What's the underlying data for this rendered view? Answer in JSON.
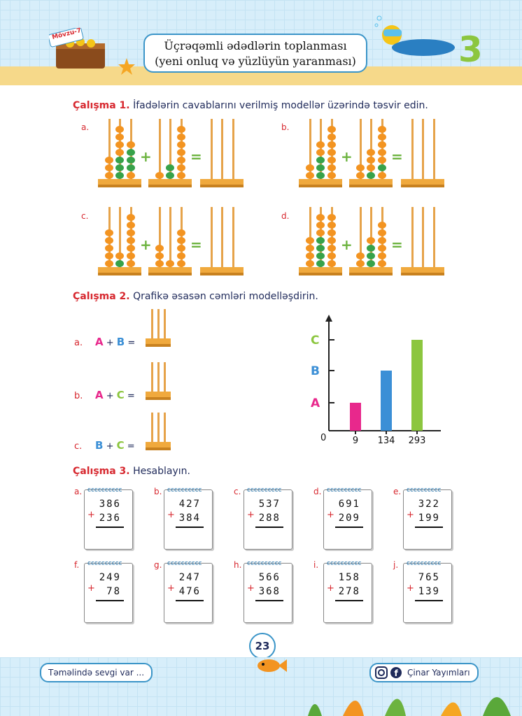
{
  "header": {
    "badge": "Mövzu-7",
    "title_line1": "Üçrəqəmli ədədlərin toplanması",
    "title_line2": "(yeni onluq və yüzlüyün yaranması)",
    "big_number": "3"
  },
  "ex1": {
    "label": "Çalışma 1.",
    "text": "İfadələrin cavablarını verilmiş modellər üzərində təsvir edin.",
    "items": [
      "a.",
      "b.",
      "c.",
      "d."
    ]
  },
  "ex2": {
    "label": "Çalışma 2.",
    "text": "Qrafikə əsasən cəmləri modelləşdirin.",
    "rows": [
      {
        "label": "a.",
        "left": "A",
        "right": "B"
      },
      {
        "label": "b.",
        "left": "A",
        "right": "C"
      },
      {
        "label": "c.",
        "left": "B",
        "right": "C"
      }
    ],
    "plus": "+",
    "equals": "="
  },
  "chart_data": {
    "type": "bar",
    "categories": [
      "A",
      "B",
      "C"
    ],
    "values": [
      9,
      134,
      293
    ],
    "x_tick_labels": [
      "9",
      "134",
      "293"
    ],
    "origin_label": "0",
    "colors": [
      "#e8288c",
      "#3b8fd6",
      "#8cc63f"
    ]
  },
  "ex3": {
    "label": "Çalışma 3.",
    "text": "Hesablayın.",
    "cards": [
      {
        "label": "a.",
        "top": "386",
        "bottom": "236"
      },
      {
        "label": "b.",
        "top": "427",
        "bottom": "384"
      },
      {
        "label": "c.",
        "top": "537",
        "bottom": "288"
      },
      {
        "label": "d.",
        "top": "691",
        "bottom": "209"
      },
      {
        "label": "e.",
        "top": "322",
        "bottom": "199"
      },
      {
        "label": "f.",
        "top": "249",
        "bottom": "78"
      },
      {
        "label": "g.",
        "top": "247",
        "bottom": "476"
      },
      {
        "label": "h.",
        "top": "566",
        "bottom": "368"
      },
      {
        "label": "i.",
        "top": "158",
        "bottom": "278"
      },
      {
        "label": "j.",
        "top": "765",
        "bottom": "139"
      }
    ],
    "plus": "+"
  },
  "footer": {
    "left": "Təməlində sevgi var ...",
    "right": "Çinar Yayımları",
    "page": "23"
  }
}
